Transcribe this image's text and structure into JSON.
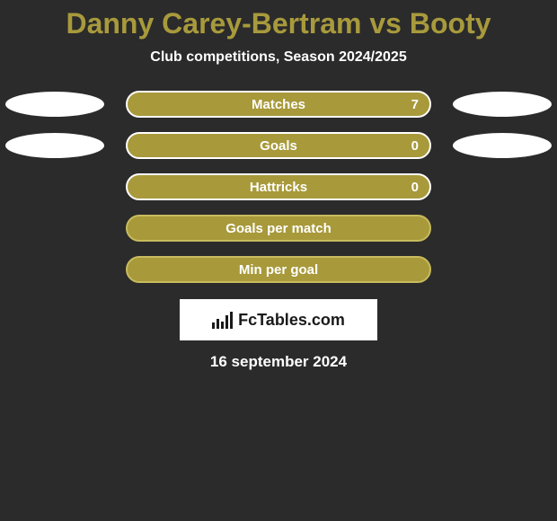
{
  "title": "Danny Carey-Bertram vs Booty",
  "title_color": "#a89a3c",
  "subtitle": "Club competitions, Season 2024/2025",
  "background_color": "#2b2b2b",
  "ellipse_color": "#ffffff",
  "rows": [
    {
      "label": "Matches",
      "value": "7",
      "bar_bg": "#a8993a",
      "bar_border": "#ffffff",
      "show_left_ellipse": true,
      "show_right_ellipse": true,
      "show_value": true
    },
    {
      "label": "Goals",
      "value": "0",
      "bar_bg": "#a8993a",
      "bar_border": "#ffffff",
      "show_left_ellipse": true,
      "show_right_ellipse": true,
      "show_value": true
    },
    {
      "label": "Hattricks",
      "value": "0",
      "bar_bg": "#a8993a",
      "bar_border": "#ffffff",
      "show_left_ellipse": false,
      "show_right_ellipse": false,
      "show_value": true
    },
    {
      "label": "Goals per match",
      "value": "",
      "bar_bg": "#a8993a",
      "bar_border": "#c8bb5e",
      "show_left_ellipse": false,
      "show_right_ellipse": false,
      "show_value": false
    },
    {
      "label": "Min per goal",
      "value": "",
      "bar_bg": "#a8993a",
      "bar_border": "#c8bb5e",
      "show_left_ellipse": false,
      "show_right_ellipse": false,
      "show_value": false
    }
  ],
  "logo_text": "FcTables.com",
  "date": "16 september 2024"
}
